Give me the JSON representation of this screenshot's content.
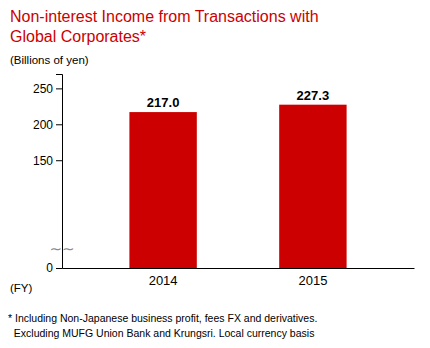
{
  "chart_data": {
    "type": "bar",
    "title": [
      "Non-interest Income from Transactions with",
      "Global Corporates*"
    ],
    "ylabel": "(Billions of yen)",
    "xlabel": "(FY)",
    "categories": [
      "2014",
      "2015"
    ],
    "values": [
      217.0,
      227.3
    ],
    "value_labels": [
      "217.0",
      "227.3"
    ],
    "data_labels": true,
    "color": "#cc0000",
    "ylim": [
      0,
      270
    ],
    "yticks": [
      0,
      150,
      200,
      250
    ],
    "grid": false,
    "annotations": [
      "∼∼"
    ],
    "footnote": [
      "* Including Non-Japanese business profit, fees FX and derivatives.",
      "  Excluding MUFG Union Bank and Krungsri. Local currency basis"
    ]
  }
}
